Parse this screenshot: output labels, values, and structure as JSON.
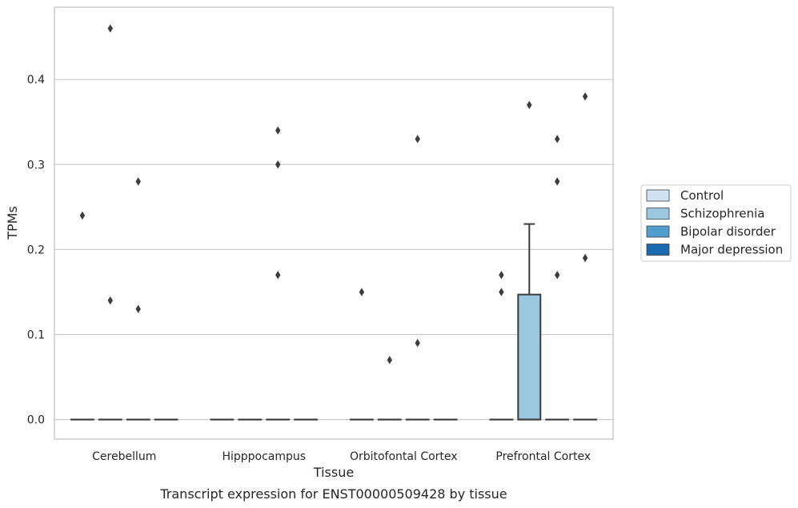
{
  "chart_data": {
    "type": "box",
    "title": "",
    "caption": "Transcript expression for ENST00000509428 by tissue",
    "xlabel": "Tissue",
    "ylabel": "TPMs",
    "categories": [
      "Cerebellum",
      "Hipppocampus",
      "Orbitofontal Cortex",
      "Prefrontal Cortex"
    ],
    "ylim": [
      -0.023,
      0.485
    ],
    "yticks": [
      0.0,
      0.1,
      0.2,
      0.3,
      0.4
    ],
    "ytick_labels": [
      "0.0",
      "0.1",
      "0.2",
      "0.3",
      "0.4"
    ],
    "grid": "horizontal",
    "legend_position": "right",
    "series": [
      {
        "name": "Control",
        "color": "#d1e3f3"
      },
      {
        "name": "Schizophrenia",
        "color": "#9ac8e0"
      },
      {
        "name": "Bipolar disorder",
        "color": "#529dcc"
      },
      {
        "name": "Major depression",
        "color": "#1c6aaf"
      }
    ],
    "boxes": [
      {
        "category": "Cerebellum",
        "series": "Control",
        "q1": 0,
        "median": 0,
        "q3": 0,
        "whisker_low": 0,
        "whisker_high": 0,
        "outliers": [
          0.24
        ]
      },
      {
        "category": "Cerebellum",
        "series": "Schizophrenia",
        "q1": 0,
        "median": 0,
        "q3": 0,
        "whisker_low": 0,
        "whisker_high": 0,
        "outliers": [
          0.46,
          0.14
        ]
      },
      {
        "category": "Cerebellum",
        "series": "Bipolar disorder",
        "q1": 0,
        "median": 0,
        "q3": 0,
        "whisker_low": 0,
        "whisker_high": 0,
        "outliers": [
          0.28,
          0.13
        ]
      },
      {
        "category": "Cerebellum",
        "series": "Major depression",
        "q1": 0,
        "median": 0,
        "q3": 0,
        "whisker_low": 0,
        "whisker_high": 0,
        "outliers": []
      },
      {
        "category": "Hipppocampus",
        "series": "Control",
        "q1": 0,
        "median": 0,
        "q3": 0,
        "whisker_low": 0,
        "whisker_high": 0,
        "outliers": []
      },
      {
        "category": "Hipppocampus",
        "series": "Schizophrenia",
        "q1": 0,
        "median": 0,
        "q3": 0,
        "whisker_low": 0,
        "whisker_high": 0,
        "outliers": []
      },
      {
        "category": "Hipppocampus",
        "series": "Bipolar disorder",
        "q1": 0,
        "median": 0,
        "q3": 0,
        "whisker_low": 0,
        "whisker_high": 0,
        "outliers": [
          0.34,
          0.3,
          0.17
        ]
      },
      {
        "category": "Hipppocampus",
        "series": "Major depression",
        "q1": 0,
        "median": 0,
        "q3": 0,
        "whisker_low": 0,
        "whisker_high": 0,
        "outliers": []
      },
      {
        "category": "Orbitofontal Cortex",
        "series": "Control",
        "q1": 0,
        "median": 0,
        "q3": 0,
        "whisker_low": 0,
        "whisker_high": 0,
        "outliers": [
          0.15
        ]
      },
      {
        "category": "Orbitofontal Cortex",
        "series": "Schizophrenia",
        "q1": 0,
        "median": 0,
        "q3": 0,
        "whisker_low": 0,
        "whisker_high": 0,
        "outliers": [
          0.07
        ]
      },
      {
        "category": "Orbitofontal Cortex",
        "series": "Bipolar disorder",
        "q1": 0,
        "median": 0,
        "q3": 0,
        "whisker_low": 0,
        "whisker_high": 0,
        "outliers": [
          0.33,
          0.09
        ]
      },
      {
        "category": "Orbitofontal Cortex",
        "series": "Major depression",
        "q1": 0,
        "median": 0,
        "q3": 0,
        "whisker_low": 0,
        "whisker_high": 0,
        "outliers": []
      },
      {
        "category": "Prefrontal Cortex",
        "series": "Control",
        "q1": 0,
        "median": 0,
        "q3": 0,
        "whisker_low": 0,
        "whisker_high": 0,
        "outliers": [
          0.17,
          0.15
        ]
      },
      {
        "category": "Prefrontal Cortex",
        "series": "Schizophrenia",
        "q1": 0,
        "median": 0,
        "q3": 0.147,
        "whisker_low": 0,
        "whisker_high": 0.23,
        "outliers": [
          0.37
        ]
      },
      {
        "category": "Prefrontal Cortex",
        "series": "Bipolar disorder",
        "q1": 0,
        "median": 0,
        "q3": 0,
        "whisker_low": 0,
        "whisker_high": 0,
        "outliers": [
          0.33,
          0.28,
          0.17
        ]
      },
      {
        "category": "Prefrontal Cortex",
        "series": "Major depression",
        "q1": 0,
        "median": 0,
        "q3": 0,
        "whisker_low": 0,
        "whisker_high": 0,
        "outliers": [
          0.38,
          0.19
        ]
      }
    ]
  }
}
